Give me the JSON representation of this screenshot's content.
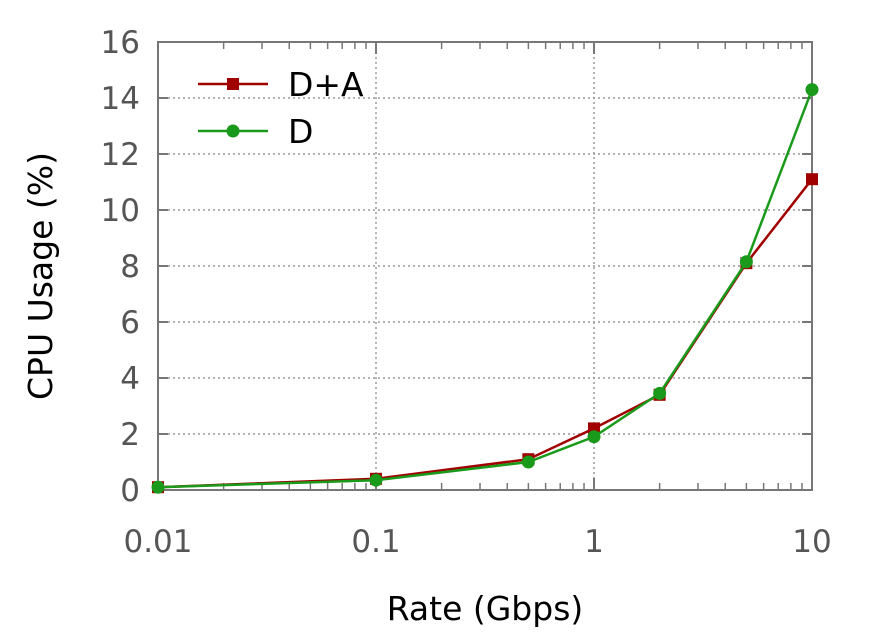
{
  "chart_data": {
    "type": "line",
    "xscale": "log",
    "xlim": [
      0.01,
      10
    ],
    "ylim": [
      0,
      16
    ],
    "xticks": [
      0.01,
      0.1,
      1,
      10
    ],
    "xtick_labels": [
      "0.01",
      "0.1",
      "1",
      "10"
    ],
    "yticks": [
      0,
      2,
      4,
      6,
      8,
      10,
      12,
      14,
      16
    ],
    "ytick_labels": [
      "0",
      "2",
      "4",
      "6",
      "8",
      "10",
      "12",
      "14",
      "16"
    ],
    "xlabel": "Rate (Gbps)",
    "ylabel": "CPU Usage (%)",
    "grid": true,
    "legend_position": "top-left",
    "x": [
      0.01,
      0.1,
      0.5,
      1,
      2,
      5,
      10
    ],
    "series": [
      {
        "name": "D+A",
        "color": "#a00000",
        "marker": "square",
        "values": [
          0.1,
          0.4,
          1.1,
          2.2,
          3.4,
          8.1,
          11.1
        ]
      },
      {
        "name": "D",
        "color": "#1a9a1a",
        "marker": "circle",
        "values": [
          0.1,
          0.35,
          1.0,
          1.9,
          3.45,
          8.15,
          14.3
        ]
      }
    ]
  }
}
